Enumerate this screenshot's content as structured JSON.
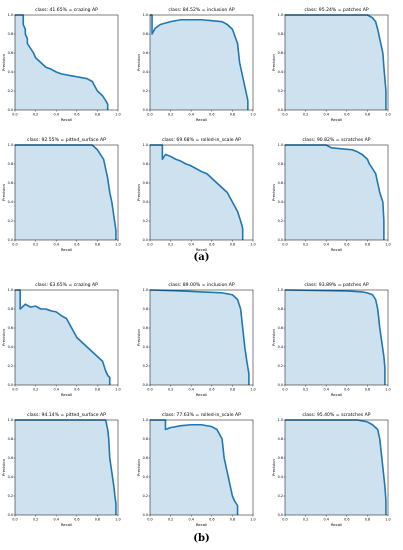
{
  "figure_labels": [
    "(a)",
    "(b)"
  ],
  "chart_data": [
    {
      "type": "area",
      "group": "(a)",
      "title": "class: 41.65% = crazing AP",
      "xlabel": "Recall",
      "ylabel": "Precision",
      "xlim": [
        0,
        1
      ],
      "ylim": [
        0,
        1
      ],
      "xticks": [
        "0.0",
        "0.2",
        "0.4",
        "0.6",
        "0.8",
        "1.0"
      ],
      "yticks": [
        "0.0",
        "0.2",
        "0.4",
        "0.6",
        "0.8",
        "1.0"
      ],
      "x": [
        0,
        0.08,
        0.08,
        0.1,
        0.1,
        0.12,
        0.12,
        0.15,
        0.18,
        0.2,
        0.22,
        0.25,
        0.3,
        0.35,
        0.4,
        0.45,
        0.5,
        0.55,
        0.6,
        0.65,
        0.7,
        0.75,
        0.8,
        0.85,
        0.88,
        0.9,
        0.9
      ],
      "y": [
        1,
        1,
        0.9,
        0.85,
        0.8,
        0.75,
        0.7,
        0.65,
        0.6,
        0.55,
        0.53,
        0.5,
        0.45,
        0.43,
        0.4,
        0.38,
        0.37,
        0.36,
        0.35,
        0.34,
        0.33,
        0.3,
        0.2,
        0.15,
        0.1,
        0.06,
        0
      ]
    },
    {
      "type": "area",
      "group": "(a)",
      "title": "class: 84.52% = inclusion AP",
      "xlabel": "Recall",
      "ylabel": "Precision",
      "xlim": [
        0,
        1
      ],
      "ylim": [
        0,
        1
      ],
      "xticks": [
        "0.0",
        "0.2",
        "0.4",
        "0.6",
        "0.8",
        "1.0"
      ],
      "yticks": [
        "0.0",
        "0.2",
        "0.4",
        "0.6",
        "0.8",
        "1.0"
      ],
      "x": [
        0,
        0.02,
        0.02,
        0.05,
        0.1,
        0.2,
        0.3,
        0.4,
        0.5,
        0.6,
        0.7,
        0.75,
        0.8,
        0.85,
        0.87,
        0.9,
        0.93,
        0.95,
        0.95
      ],
      "y": [
        1,
        1,
        0.8,
        0.86,
        0.9,
        0.93,
        0.95,
        0.95,
        0.95,
        0.94,
        0.93,
        0.9,
        0.85,
        0.7,
        0.5,
        0.35,
        0.2,
        0.1,
        0
      ]
    },
    {
      "type": "area",
      "group": "(a)",
      "title": "class: 95.24% = patches AP",
      "xlabel": "Recall",
      "ylabel": "Precision",
      "xlim": [
        0,
        1
      ],
      "ylim": [
        0,
        1
      ],
      "xticks": [
        "0.0",
        "0.2",
        "0.4",
        "0.6",
        "0.8",
        "1.0"
      ],
      "yticks": [
        "0.0",
        "0.2",
        "0.4",
        "0.6",
        "0.8",
        "1.0"
      ],
      "x": [
        0,
        0.5,
        0.8,
        0.85,
        0.88,
        0.9,
        0.92,
        0.95,
        0.96,
        0.98,
        0.98
      ],
      "y": [
        1,
        1,
        1,
        0.97,
        0.93,
        0.85,
        0.75,
        0.6,
        0.45,
        0.2,
        0
      ]
    },
    {
      "type": "area",
      "group": "(a)",
      "title": "class: 92.55% = pitted_surface AP",
      "xlabel": "Recall",
      "ylabel": "Precision",
      "xlim": [
        0,
        1
      ],
      "ylim": [
        0,
        1
      ],
      "xticks": [
        "0.0",
        "0.2",
        "0.4",
        "0.6",
        "0.8",
        "1.0"
      ],
      "yticks": [
        "0.0",
        "0.2",
        "0.4",
        "0.6",
        "0.8",
        "1.0"
      ],
      "x": [
        0,
        0.75,
        0.8,
        0.83,
        0.86,
        0.88,
        0.9,
        0.92,
        0.94,
        0.96,
        0.98,
        0.98
      ],
      "y": [
        1,
        1,
        0.95,
        0.9,
        0.85,
        0.75,
        0.65,
        0.5,
        0.4,
        0.25,
        0.1,
        0
      ]
    },
    {
      "type": "area",
      "group": "(a)",
      "title": "class: 69.68% = rolled-in_scale AP",
      "xlabel": "Recall",
      "ylabel": "Precision",
      "xlim": [
        0,
        1
      ],
      "ylim": [
        0,
        1
      ],
      "xticks": [
        "0.0",
        "0.2",
        "0.4",
        "0.6",
        "0.8",
        "1.0"
      ],
      "yticks": [
        "0.0",
        "0.2",
        "0.4",
        "0.6",
        "0.8",
        "1.0"
      ],
      "x": [
        0,
        0.12,
        0.12,
        0.15,
        0.2,
        0.25,
        0.3,
        0.35,
        0.4,
        0.45,
        0.5,
        0.55,
        0.6,
        0.65,
        0.7,
        0.75,
        0.8,
        0.85,
        0.88,
        0.9,
        0.9
      ],
      "y": [
        1,
        1,
        0.85,
        0.9,
        0.88,
        0.85,
        0.83,
        0.8,
        0.78,
        0.75,
        0.72,
        0.7,
        0.65,
        0.6,
        0.55,
        0.5,
        0.4,
        0.3,
        0.2,
        0.12,
        0
      ]
    },
    {
      "type": "area",
      "group": "(a)",
      "title": "class: 90.82% = scratches AP",
      "xlabel": "Recall",
      "ylabel": "Precision",
      "xlim": [
        0,
        1
      ],
      "ylim": [
        0,
        1
      ],
      "xticks": [
        "0.0",
        "0.2",
        "0.4",
        "0.6",
        "0.8",
        "1.0"
      ],
      "yticks": [
        "0.0",
        "0.2",
        "0.4",
        "0.6",
        "0.8",
        "1.0"
      ],
      "x": [
        0,
        0.4,
        0.45,
        0.55,
        0.65,
        0.7,
        0.75,
        0.8,
        0.82,
        0.85,
        0.88,
        0.9,
        0.92,
        0.95,
        0.96,
        0.96
      ],
      "y": [
        1,
        1,
        0.97,
        0.96,
        0.95,
        0.93,
        0.9,
        0.85,
        0.8,
        0.75,
        0.7,
        0.6,
        0.5,
        0.4,
        0.2,
        0
      ]
    },
    {
      "type": "area",
      "group": "(b)",
      "title": "class: 63.65% = crazing AP",
      "xlabel": "Recall",
      "ylabel": "Precision",
      "xlim": [
        0,
        1
      ],
      "ylim": [
        0,
        1
      ],
      "xticks": [
        "0.0",
        "0.2",
        "0.4",
        "0.6",
        "0.8",
        "1.0"
      ],
      "yticks": [
        "0.0",
        "0.2",
        "0.4",
        "0.6",
        "0.8",
        "1.0"
      ],
      "x": [
        0,
        0.05,
        0.05,
        0.1,
        0.15,
        0.2,
        0.25,
        0.3,
        0.35,
        0.4,
        0.45,
        0.5,
        0.55,
        0.6,
        0.65,
        0.7,
        0.75,
        0.8,
        0.85,
        0.88,
        0.9,
        0.92,
        0.92
      ],
      "y": [
        1,
        1,
        0.8,
        0.85,
        0.82,
        0.83,
        0.8,
        0.8,
        0.78,
        0.77,
        0.73,
        0.7,
        0.6,
        0.5,
        0.45,
        0.4,
        0.35,
        0.3,
        0.25,
        0.15,
        0.1,
        0.08,
        0
      ]
    },
    {
      "type": "area",
      "group": "(b)",
      "title": "class: 89.00% = inclusion AP",
      "xlabel": "Recall",
      "ylabel": "Precision",
      "xlim": [
        0,
        1
      ],
      "ylim": [
        0,
        1
      ],
      "xticks": [
        "0.0",
        "0.2",
        "0.4",
        "0.6",
        "0.8",
        "1.0"
      ],
      "yticks": [
        "0.0",
        "0.2",
        "0.4",
        "0.6",
        "0.8",
        "1.0"
      ],
      "x": [
        0,
        0.3,
        0.5,
        0.7,
        0.8,
        0.85,
        0.88,
        0.9,
        0.92,
        0.94,
        0.96,
        0.96
      ],
      "y": [
        1,
        0.99,
        0.98,
        0.97,
        0.95,
        0.9,
        0.8,
        0.6,
        0.4,
        0.25,
        0.12,
        0
      ]
    },
    {
      "type": "area",
      "group": "(b)",
      "title": "class: 93.89% = patches AP",
      "xlabel": "Recall",
      "ylabel": "Precision",
      "xlim": [
        0,
        1
      ],
      "ylim": [
        0,
        1
      ],
      "xticks": [
        "0.0",
        "0.2",
        "0.4",
        "0.6",
        "0.8",
        "1.0"
      ],
      "yticks": [
        "0.0",
        "0.2",
        "0.4",
        "0.6",
        "0.8",
        "1.0"
      ],
      "x": [
        0,
        0.6,
        0.75,
        0.8,
        0.85,
        0.88,
        0.9,
        0.92,
        0.94,
        0.96,
        0.97,
        0.97
      ],
      "y": [
        1,
        0.99,
        0.98,
        0.97,
        0.95,
        0.9,
        0.8,
        0.6,
        0.45,
        0.3,
        0.18,
        0
      ]
    },
    {
      "type": "area",
      "group": "(b)",
      "title": "class: 94.14% = pitted_surface AP",
      "xlabel": "Recall",
      "ylabel": "Precision",
      "xlim": [
        0,
        1
      ],
      "ylim": [
        0,
        1
      ],
      "xticks": [
        "0.0",
        "0.2",
        "0.4",
        "0.6",
        "0.8",
        "1.0"
      ],
      "yticks": [
        "0.0",
        "0.2",
        "0.4",
        "0.6",
        "0.8",
        "1.0"
      ],
      "x": [
        0,
        0.88,
        0.9,
        0.91,
        0.92,
        0.94,
        0.96,
        0.97,
        0.98,
        0.98
      ],
      "y": [
        1,
        1,
        0.9,
        0.8,
        0.6,
        0.45,
        0.3,
        0.2,
        0.12,
        0
      ]
    },
    {
      "type": "area",
      "group": "(b)",
      "title": "class: 77.63% = rolled-in_scale AP",
      "xlabel": "Recall",
      "ylabel": "Precision",
      "xlim": [
        0,
        1
      ],
      "ylim": [
        0,
        1
      ],
      "xticks": [
        "0.0",
        "0.2",
        "0.4",
        "0.6",
        "0.8",
        "1.0"
      ],
      "yticks": [
        "0.0",
        "0.2",
        "0.4",
        "0.6",
        "0.8",
        "1.0"
      ],
      "x": [
        0,
        0.15,
        0.15,
        0.2,
        0.3,
        0.4,
        0.5,
        0.6,
        0.65,
        0.7,
        0.72,
        0.75,
        0.78,
        0.8,
        0.82,
        0.85,
        0.85
      ],
      "y": [
        1,
        1,
        0.9,
        0.92,
        0.94,
        0.95,
        0.95,
        0.93,
        0.9,
        0.8,
        0.6,
        0.45,
        0.3,
        0.2,
        0.15,
        0.1,
        0
      ]
    },
    {
      "type": "area",
      "group": "(b)",
      "title": "class: 95.40% = scratches AP",
      "xlabel": "Recall",
      "ylabel": "Precision",
      "xlim": [
        0,
        1
      ],
      "ylim": [
        0,
        1
      ],
      "xticks": [
        "0.0",
        "0.2",
        "0.4",
        "0.6",
        "0.8",
        "1.0"
      ],
      "yticks": [
        "0.0",
        "0.2",
        "0.4",
        "0.6",
        "0.8",
        "1.0"
      ],
      "x": [
        0,
        0.7,
        0.8,
        0.85,
        0.9,
        0.92,
        0.94,
        0.95,
        0.96,
        0.97,
        0.98,
        0.98
      ],
      "y": [
        1,
        1,
        0.98,
        0.95,
        0.9,
        0.8,
        0.6,
        0.5,
        0.4,
        0.3,
        0.15,
        0
      ]
    }
  ]
}
